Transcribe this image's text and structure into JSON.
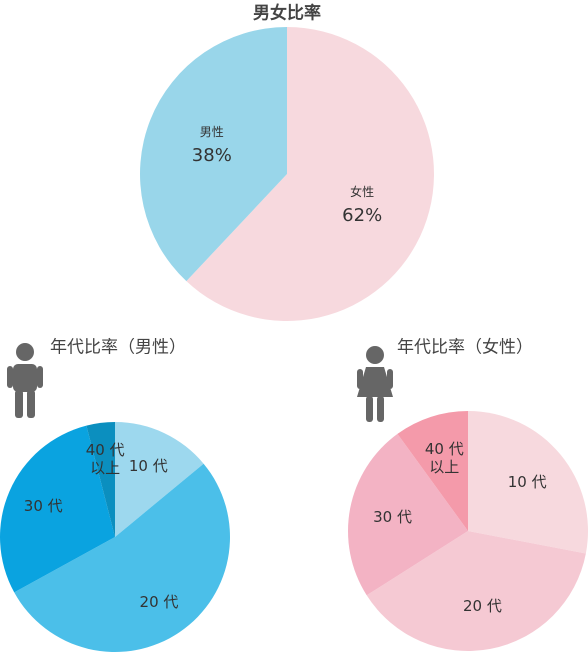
{
  "chart_data": [
    {
      "type": "pie",
      "title": "男女比率",
      "categories": [
        "女性",
        "男性"
      ],
      "values": [
        62,
        38
      ],
      "value_labels": [
        "62%",
        "38%"
      ],
      "colors": [
        "#f7d9de",
        "#99d6ea"
      ]
    },
    {
      "type": "pie",
      "title": "年代比率（男性）",
      "categories": [
        "10 代",
        "20 代",
        "30 代",
        "40 代\n以上"
      ],
      "values": [
        14,
        53,
        29,
        4
      ],
      "colors": [
        "#9dd8ee",
        "#4bbfe9",
        "#0aa3e0",
        "#0b8fbf"
      ]
    },
    {
      "type": "pie",
      "title": "年代比率（女性）",
      "categories": [
        "10 代",
        "20 代",
        "30 代",
        "40 代\n以上"
      ],
      "values": [
        28,
        38,
        24,
        10
      ],
      "colors": [
        "#f7d9de",
        "#f5c9d3",
        "#f3b3c4",
        "#f49aaa"
      ]
    }
  ]
}
